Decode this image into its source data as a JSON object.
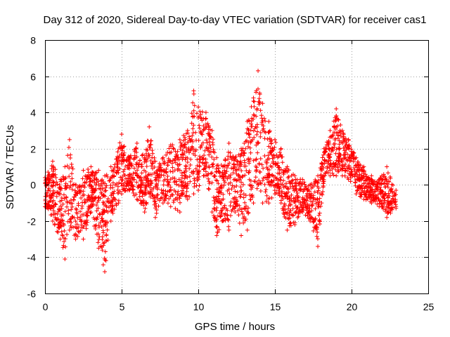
{
  "chart_data": {
    "type": "scatter",
    "title": "Day 312 of 2020, Sidereal Day-to-day VTEC variation (SDTVAR) for receiver cas1",
    "xlabel": "GPS time / hours",
    "ylabel": "SDTVAR / TECUs",
    "xlim": [
      0,
      25
    ],
    "ylim": [
      -6,
      8
    ],
    "xticks": [
      0,
      5,
      10,
      15,
      20,
      25
    ],
    "yticks": [
      -6,
      -4,
      -2,
      0,
      2,
      4,
      6,
      8
    ],
    "grid": true,
    "marker": "+",
    "color": "#ff0000",
    "series_envelope": [
      {
        "x": 0.0,
        "lo": -1.2,
        "hi": 0.4
      },
      {
        "x": 0.5,
        "lo": -2.0,
        "hi": 1.3
      },
      {
        "x": 1.0,
        "lo": -3.0,
        "hi": 0.3
      },
      {
        "x": 1.3,
        "lo": -4.1,
        "hi": 1.0
      },
      {
        "x": 1.6,
        "lo": -2.5,
        "hi": 2.5
      },
      {
        "x": 2.0,
        "lo": -3.0,
        "hi": 0.0
      },
      {
        "x": 2.5,
        "lo": -3.0,
        "hi": 0.8
      },
      {
        "x": 3.0,
        "lo": -1.5,
        "hi": 1.0
      },
      {
        "x": 3.5,
        "lo": -3.5,
        "hi": 0.8
      },
      {
        "x": 3.9,
        "lo": -4.8,
        "hi": 0.5
      },
      {
        "x": 4.3,
        "lo": -2.0,
        "hi": 1.0
      },
      {
        "x": 4.8,
        "lo": -1.0,
        "hi": 2.0
      },
      {
        "x": 5.0,
        "lo": -0.5,
        "hi": 2.8
      },
      {
        "x": 5.5,
        "lo": -0.3,
        "hi": 1.5
      },
      {
        "x": 6.0,
        "lo": -0.8,
        "hi": 2.3
      },
      {
        "x": 6.5,
        "lo": -1.5,
        "hi": 1.5
      },
      {
        "x": 6.8,
        "lo": -0.5,
        "hi": 3.2
      },
      {
        "x": 7.2,
        "lo": -1.8,
        "hi": 1.3
      },
      {
        "x": 7.7,
        "lo": -1.0,
        "hi": 1.5
      },
      {
        "x": 8.2,
        "lo": -1.2,
        "hi": 2.2
      },
      {
        "x": 8.8,
        "lo": -1.5,
        "hi": 2.5
      },
      {
        "x": 9.3,
        "lo": -0.8,
        "hi": 3.0
      },
      {
        "x": 9.7,
        "lo": -0.5,
        "hi": 5.2
      },
      {
        "x": 10.0,
        "lo": -0.3,
        "hi": 4.3
      },
      {
        "x": 10.5,
        "lo": 0.5,
        "hi": 4.0
      },
      {
        "x": 10.9,
        "lo": -1.5,
        "hi": 3.0
      },
      {
        "x": 11.2,
        "lo": -2.8,
        "hi": 1.5
      },
      {
        "x": 11.6,
        "lo": -2.0,
        "hi": 1.0
      },
      {
        "x": 12.0,
        "lo": -2.5,
        "hi": 2.3
      },
      {
        "x": 12.4,
        "lo": -1.5,
        "hi": 1.5
      },
      {
        "x": 12.8,
        "lo": -2.8,
        "hi": 2.0
      },
      {
        "x": 13.2,
        "lo": -2.5,
        "hi": 3.5
      },
      {
        "x": 13.6,
        "lo": -1.0,
        "hi": 4.8
      },
      {
        "x": 13.9,
        "lo": 0.0,
        "hi": 6.3
      },
      {
        "x": 14.2,
        "lo": -1.0,
        "hi": 4.5
      },
      {
        "x": 14.6,
        "lo": -1.0,
        "hi": 3.5
      },
      {
        "x": 15.0,
        "lo": -0.5,
        "hi": 2.5
      },
      {
        "x": 15.4,
        "lo": -1.0,
        "hi": 2.0
      },
      {
        "x": 15.8,
        "lo": -2.5,
        "hi": 1.0
      },
      {
        "x": 16.3,
        "lo": -2.2,
        "hi": 0.5
      },
      {
        "x": 16.8,
        "lo": -1.5,
        "hi": 0.3
      },
      {
        "x": 17.3,
        "lo": -2.0,
        "hi": 0.0
      },
      {
        "x": 17.8,
        "lo": -3.4,
        "hi": 0.5
      },
      {
        "x": 18.2,
        "lo": 0.2,
        "hi": 2.0
      },
      {
        "x": 18.6,
        "lo": 0.5,
        "hi": 3.0
      },
      {
        "x": 19.0,
        "lo": 0.5,
        "hi": 4.2
      },
      {
        "x": 19.4,
        "lo": 0.5,
        "hi": 3.0
      },
      {
        "x": 19.8,
        "lo": 0.3,
        "hi": 2.5
      },
      {
        "x": 20.3,
        "lo": -0.5,
        "hi": 1.5
      },
      {
        "x": 20.8,
        "lo": -0.8,
        "hi": 1.0
      },
      {
        "x": 21.3,
        "lo": -1.0,
        "hi": 0.5
      },
      {
        "x": 21.8,
        "lo": -1.2,
        "hi": 0.3
      },
      {
        "x": 22.3,
        "lo": -1.8,
        "hi": 1.0
      },
      {
        "x": 22.9,
        "lo": -1.3,
        "hi": -0.3
      }
    ]
  }
}
